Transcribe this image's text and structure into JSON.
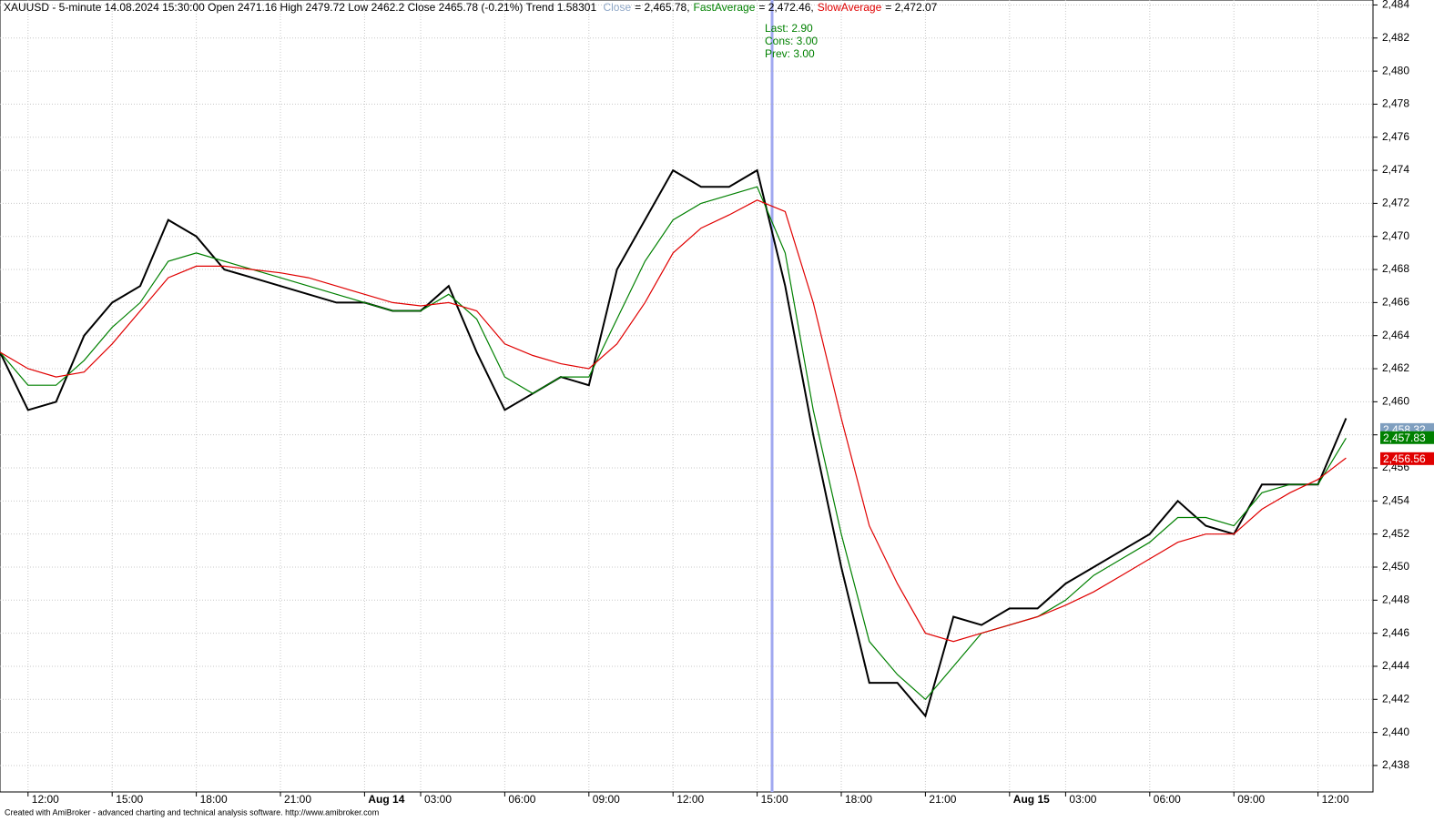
{
  "chart_data": {
    "type": "line",
    "title": "XAUUSD - 5-minute 14.08.2024 15:30:00 Open 2471.16 High 2479.72 Low 2462.2 Close 2465.78 (-0.21%) Trend 1.58301",
    "annotations": [
      "Last: 2.90",
      "Cons: 3.00",
      "Prev: 3.00"
    ],
    "footer": "Created with AmiBroker - advanced charting and technical analysis software. http://www.amibroker.com",
    "categories": [
      null,
      "12:00",
      null,
      null,
      "15:00",
      null,
      null,
      "18:00",
      null,
      null,
      "21:00",
      null,
      null,
      "Aug 14",
      null,
      "03:00",
      null,
      null,
      "06:00",
      null,
      null,
      "09:00",
      null,
      null,
      "12:00",
      null,
      null,
      "15:00",
      null,
      null,
      "18:00",
      null,
      null,
      "21:00",
      null,
      null,
      "Aug 15",
      null,
      "03:00",
      null,
      null,
      "06:00",
      null,
      null,
      "09:00",
      null,
      null,
      "12:00",
      null
    ],
    "series": [
      {
        "name": "Close",
        "legend_label": "= 2,465.78,",
        "color": "#000000",
        "values": [
          2463,
          2459.5,
          2460,
          2464,
          2466,
          2467,
          2471,
          2470,
          2468,
          2467.5,
          2467,
          2466.5,
          2466,
          2466,
          2465.5,
          2465.5,
          2467,
          2463,
          2459.5,
          2460.5,
          2461.5,
          2461,
          2468,
          2471,
          2474,
          2473,
          2473,
          2474,
          2467,
          2458,
          2450,
          2443,
          2443,
          2441,
          2447,
          2446.5,
          2447.5,
          2447.5,
          2449,
          2450,
          2451,
          2452,
          2454,
          2452.5,
          2452,
          2455,
          2455,
          2455,
          2459
        ]
      },
      {
        "name": "FastAverage",
        "legend_label": "= 2,472.46,",
        "color": "#008000",
        "values": [
          2463,
          2461,
          2461,
          2462.5,
          2464.5,
          2466,
          2468.5,
          2469,
          2468.5,
          2468,
          2467.5,
          2467,
          2466.5,
          2466,
          2465.5,
          2465.5,
          2466.5,
          2465,
          2461.5,
          2460.5,
          2461.5,
          2461.5,
          2465,
          2468.5,
          2471,
          2472,
          2472.5,
          2473,
          2469,
          2459.5,
          2452,
          2445.5,
          2443.5,
          2442,
          2444,
          2446,
          2446.5,
          2447,
          2448,
          2449.5,
          2450.5,
          2451.5,
          2453,
          2453,
          2452.5,
          2454.5,
          2455,
          2455,
          2457.8
        ]
      },
      {
        "name": "SlowAverage",
        "legend_label": "= 2,472.07",
        "color": "#e00000",
        "values": [
          2463,
          2462,
          2461.5,
          2461.8,
          2463.5,
          2465.5,
          2467.5,
          2468.2,
          2468.2,
          2468,
          2467.8,
          2467.5,
          2467,
          2466.5,
          2466,
          2465.8,
          2466,
          2465.5,
          2463.5,
          2462.8,
          2462.3,
          2462,
          2463.5,
          2466,
          2469,
          2470.5,
          2471.3,
          2472.2,
          2471.5,
          2466,
          2459,
          2452.5,
          2449,
          2446,
          2445.5,
          2446,
          2446.5,
          2447,
          2447.7,
          2448.5,
          2449.5,
          2450.5,
          2451.5,
          2452,
          2452,
          2453.5,
          2454.5,
          2455.3,
          2456.6
        ]
      }
    ],
    "price_markers": [
      {
        "value": 2458.32,
        "label": "2,458.32",
        "color": "#7f9fbf"
      },
      {
        "value": 2457.83,
        "label": "2,457.83",
        "color": "#008000"
      },
      {
        "value": 2456.56,
        "label": "2,456.56",
        "color": "#e00000"
      }
    ],
    "ylim": [
      2436.4,
      2484.3
    ],
    "yticks": [
      {
        "value": 2438,
        "label": "2,438"
      },
      {
        "value": 2440,
        "label": "2,440"
      },
      {
        "value": 2442,
        "label": "2,442"
      },
      {
        "value": 2444,
        "label": "2,444"
      },
      {
        "value": 2446,
        "label": "2,446"
      },
      {
        "value": 2448,
        "label": "2,448"
      },
      {
        "value": 2450,
        "label": "2,450"
      },
      {
        "value": 2452,
        "label": "2,452"
      },
      {
        "value": 2454,
        "label": "2,454"
      },
      {
        "value": 2456,
        "label": "2,456"
      },
      {
        "value": 2458,
        "label": "2,458"
      },
      {
        "value": 2460,
        "label": "2,460"
      },
      {
        "value": 2462,
        "label": "2,462"
      },
      {
        "value": 2464,
        "label": "2,464"
      },
      {
        "value": 2466,
        "label": "2,466"
      },
      {
        "value": 2468,
        "label": "2,468"
      },
      {
        "value": 2470,
        "label": "2,470"
      },
      {
        "value": 2472,
        "label": "2,472"
      },
      {
        "value": 2474,
        "label": "2,474"
      },
      {
        "value": 2476,
        "label": "2,476"
      },
      {
        "value": 2478,
        "label": "2,478"
      },
      {
        "value": 2480,
        "label": "2,480"
      },
      {
        "value": 2482,
        "label": "2,482"
      },
      {
        "value": 2484,
        "label": "2,484"
      }
    ],
    "grid": true
  }
}
